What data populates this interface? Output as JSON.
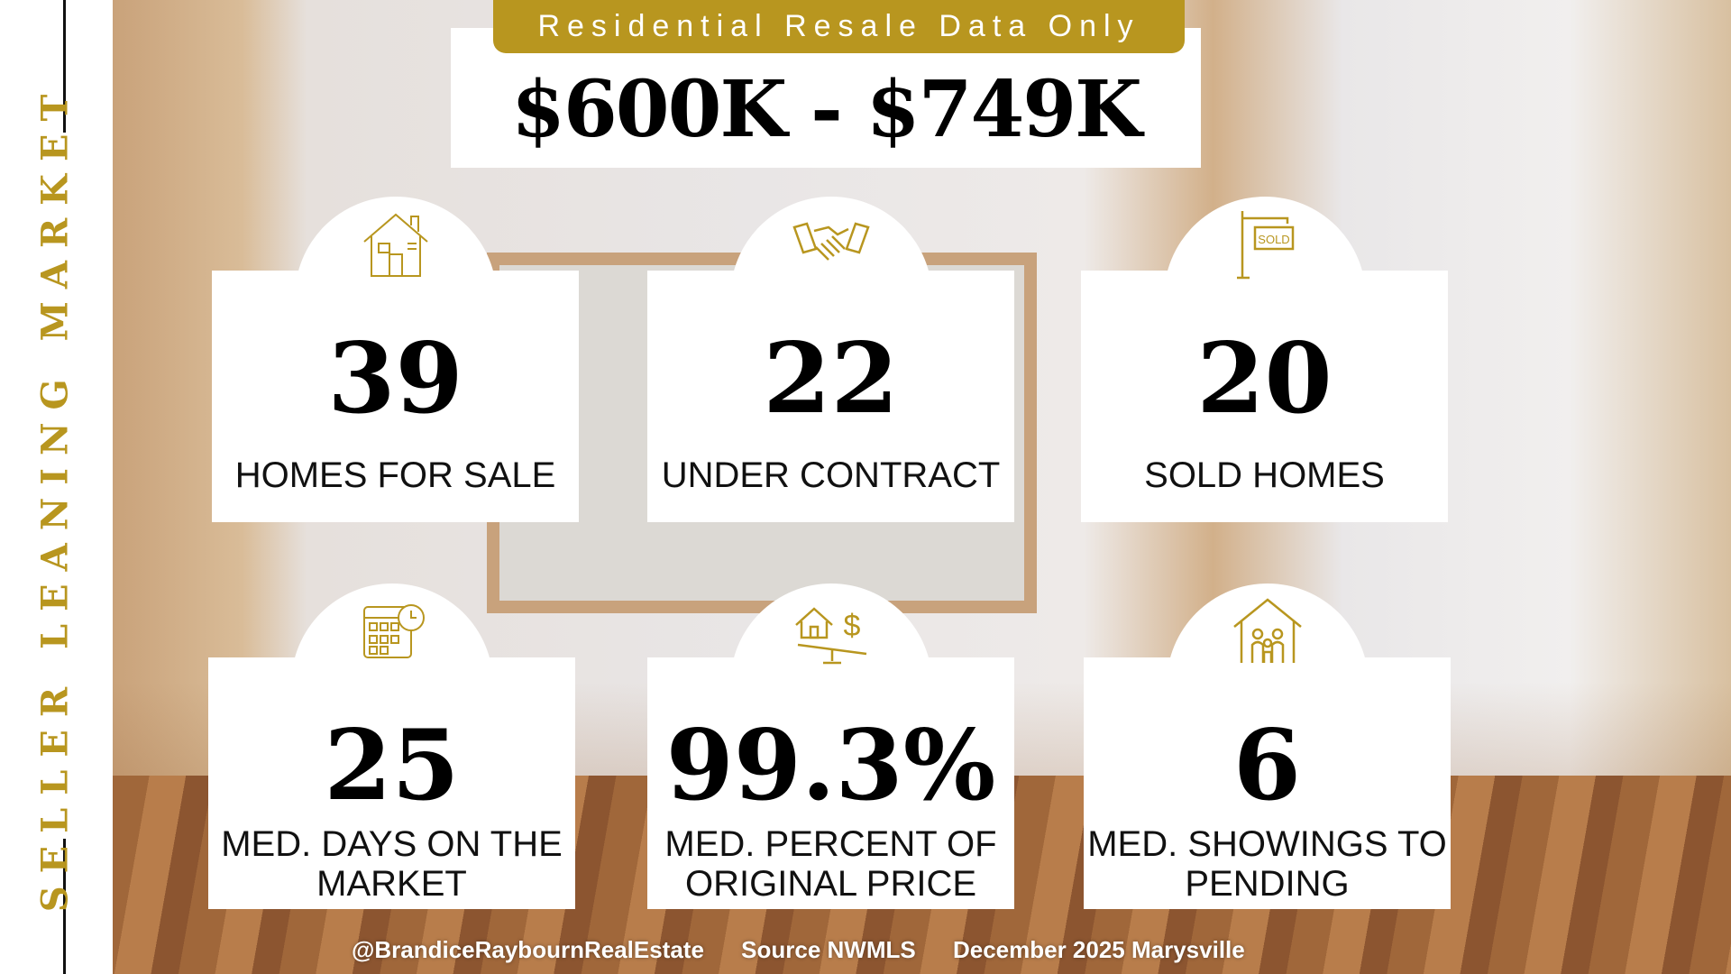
{
  "side_title": "SELLER LEANING MARKET",
  "banner": "Residential Resale Data Only",
  "price_range": "$600K - $749K",
  "colors": {
    "gold": "#b8961f",
    "text": "#000000"
  },
  "stats": [
    {
      "icon": "house-icon",
      "value": "39",
      "label": "HOMES FOR SALE"
    },
    {
      "icon": "handshake-icon",
      "value": "22",
      "label": "UNDER CONTRACT"
    },
    {
      "icon": "sold-sign-icon",
      "value": "20",
      "label": "SOLD HOMES"
    },
    {
      "icon": "calendar-clock-icon",
      "value": "25",
      "label": "MED. DAYS ON THE MARKET"
    },
    {
      "icon": "house-dollar-scale-icon",
      "value": "99.3%",
      "label": "MED. PERCENT OF ORIGINAL PRICE"
    },
    {
      "icon": "house-family-icon",
      "value": "6",
      "label": "MED. SHOWINGS TO PENDING"
    }
  ],
  "footer": {
    "handle": "@BrandiceRaybournRealEstate",
    "source": "Source NWMLS",
    "period": "December 2025 Marysville"
  }
}
